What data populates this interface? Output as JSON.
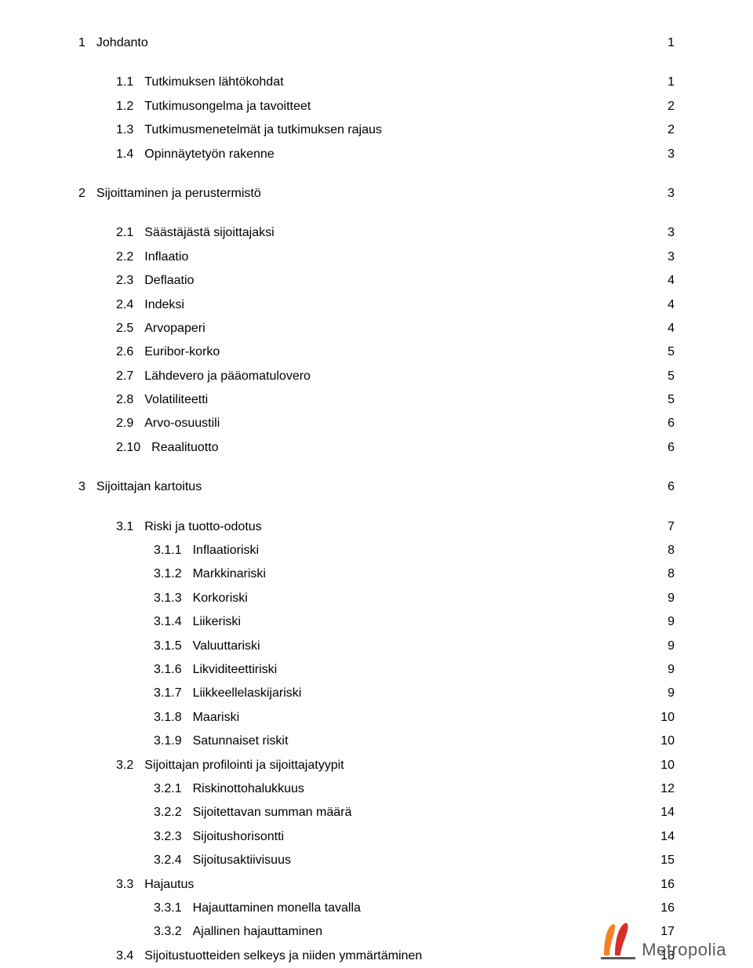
{
  "toc": [
    {
      "level": 1,
      "num": "1",
      "text": "Johdanto",
      "page": "1",
      "spacer_after": true
    },
    {
      "level": 2,
      "num": "1.1",
      "text": "Tutkimuksen lähtökohdat",
      "page": "1"
    },
    {
      "level": 2,
      "num": "1.2",
      "text": "Tutkimusongelma ja tavoitteet",
      "page": "2"
    },
    {
      "level": 2,
      "num": "1.3",
      "text": "Tutkimusmenetelmät ja tutkimuksen rajaus",
      "page": "2"
    },
    {
      "level": 2,
      "num": "1.4",
      "text": "Opinnäytetyön rakenne",
      "page": "3",
      "spacer_after": true
    },
    {
      "level": 1,
      "num": "2",
      "text": "Sijoittaminen ja perustermistö",
      "page": "3",
      "spacer_after": true
    },
    {
      "level": 2,
      "num": "2.1",
      "text": "Säästäjästä sijoittajaksi",
      "page": "3"
    },
    {
      "level": 2,
      "num": "2.2",
      "text": "Inflaatio",
      "page": "3"
    },
    {
      "level": 2,
      "num": "2.3",
      "text": "Deflaatio",
      "page": "4"
    },
    {
      "level": 2,
      "num": "2.4",
      "text": "Indeksi",
      "page": "4"
    },
    {
      "level": 2,
      "num": "2.5",
      "text": "Arvopaperi",
      "page": "4"
    },
    {
      "level": 2,
      "num": "2.6",
      "text": "Euribor-korko",
      "page": "5"
    },
    {
      "level": 2,
      "num": "2.7",
      "text": "Lähdevero ja pääomatulovero",
      "page": "5"
    },
    {
      "level": 2,
      "num": "2.8",
      "text": "Volatiliteetti",
      "page": "5"
    },
    {
      "level": 2,
      "num": "2.9",
      "text": "Arvo-osuustili",
      "page": "6"
    },
    {
      "level": 2,
      "num": "2.10",
      "text": "Reaalituotto",
      "page": "6",
      "spacer_after": true
    },
    {
      "level": 1,
      "num": "3",
      "text": "Sijoittajan kartoitus",
      "page": "6",
      "spacer_after": true
    },
    {
      "level": 2,
      "num": "3.1",
      "text": "Riski ja tuotto-odotus",
      "page": "7"
    },
    {
      "level": 3,
      "num": "3.1.1",
      "text": "Inflaatioriski",
      "page": "8"
    },
    {
      "level": 3,
      "num": "3.1.2",
      "text": "Markkinariski",
      "page": "8"
    },
    {
      "level": 3,
      "num": "3.1.3",
      "text": "Korkoriski",
      "page": "9"
    },
    {
      "level": 3,
      "num": "3.1.4",
      "text": "Liikeriski",
      "page": "9"
    },
    {
      "level": 3,
      "num": "3.1.5",
      "text": "Valuuttariski",
      "page": "9"
    },
    {
      "level": 3,
      "num": "3.1.6",
      "text": "Likviditeettiriski",
      "page": "9"
    },
    {
      "level": 3,
      "num": "3.1.7",
      "text": "Liikkeellelaskijariski",
      "page": "9"
    },
    {
      "level": 3,
      "num": "3.1.8",
      "text": "Maariski",
      "page": "10"
    },
    {
      "level": 3,
      "num": "3.1.9",
      "text": "Satunnaiset riskit",
      "page": "10"
    },
    {
      "level": 2,
      "num": "3.2",
      "text": "Sijoittajan profilointi ja sijoittajatyypit",
      "page": "10"
    },
    {
      "level": 3,
      "num": "3.2.1",
      "text": "Riskinottohalukkuus",
      "page": "12"
    },
    {
      "level": 3,
      "num": "3.2.2",
      "text": "Sijoitettavan summan määrä",
      "page": "14"
    },
    {
      "level": 3,
      "num": "3.2.3",
      "text": "Sijoitushorisontti",
      "page": "14"
    },
    {
      "level": 3,
      "num": "3.2.4",
      "text": "Sijoitusaktiivisuus",
      "page": "15"
    },
    {
      "level": 2,
      "num": "3.3",
      "text": "Hajautus",
      "page": "16"
    },
    {
      "level": 3,
      "num": "3.3.1",
      "text": "Hajauttaminen monella tavalla",
      "page": "16"
    },
    {
      "level": 3,
      "num": "3.3.2",
      "text": "Ajallinen hajauttaminen",
      "page": "17"
    },
    {
      "level": 2,
      "num": "3.4",
      "text": "Sijoitustuotteiden selkeys ja niiden ymmärtäminen",
      "page": "18"
    }
  ],
  "logo": {
    "text": "Metropolia",
    "colors": {
      "orange": "#f58220",
      "red": "#d72e2b",
      "text": "#58595b"
    }
  }
}
